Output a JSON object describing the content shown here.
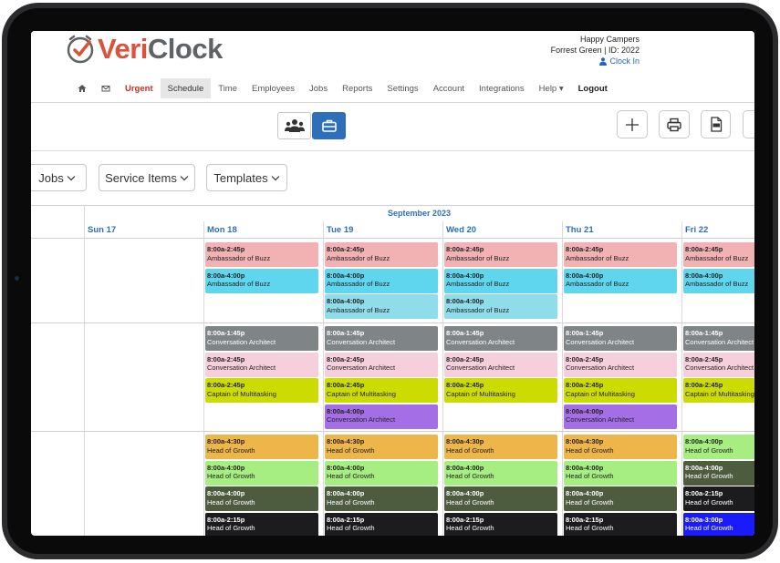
{
  "brand": {
    "veri": "Veri",
    "clock": "Clock",
    "accent": "#d9523a",
    "grey": "#5f6366"
  },
  "account": {
    "company": "Happy Campers",
    "location": "Forrest Green | ID: 2022",
    "clock_in": "Clock In"
  },
  "nav": {
    "home_icon": "home-icon",
    "mail_icon": "mail-icon",
    "items": [
      "Urgent",
      "Schedule",
      "Time",
      "Employees",
      "Jobs",
      "Reports",
      "Settings",
      "Account",
      "Integrations",
      "Help ▾",
      "Logout"
    ],
    "active": "Schedule"
  },
  "toolbar": {
    "view_people_icon": "people-icon",
    "view_jobs_icon": "briefcase-icon",
    "add_icon": "plus-icon",
    "print_icon": "printer-icon",
    "pdf_icon": "pdf-icon"
  },
  "filters": {
    "jobs": "Jobs",
    "service_items": "Service Items",
    "templates": "Templates"
  },
  "calendar": {
    "month": "September 2023",
    "days": [
      "Sun 17",
      "Mon 18",
      "Tue 19",
      "Wed 20",
      "Thu 21",
      "Fri 22"
    ],
    "groups": [
      {
        "columns": [
          [],
          [
            {
              "time": "8:00a-2:45p",
              "role": "Ambassador of Buzz",
              "color": "#f2b1b3",
              "text": "#222"
            },
            {
              "time": "8:00a-4:00p",
              "role": "Ambassador of Buzz",
              "color": "#5fd6ed",
              "text": "#222"
            }
          ],
          [
            {
              "time": "8:00a-2:45p",
              "role": "Ambassador of Buzz",
              "color": "#f2b1b3",
              "text": "#222"
            },
            {
              "time": "8:00a-4:00p",
              "role": "Ambassador of Buzz",
              "color": "#5fd6ed",
              "text": "#222"
            },
            {
              "time": "8:00a-4:00p",
              "role": "Ambassador of Buzz",
              "color": "#8fdcea",
              "text": "#222"
            }
          ],
          [
            {
              "time": "8:00a-2:45p",
              "role": "Ambassador of Buzz",
              "color": "#f2b1b3",
              "text": "#222"
            },
            {
              "time": "8:00a-4:00p",
              "role": "Ambassador of Buzz",
              "color": "#5fd6ed",
              "text": "#222"
            },
            {
              "time": "8:00a-4:00p",
              "role": "Ambassador of Buzz",
              "color": "#8fdcea",
              "text": "#222"
            }
          ],
          [
            {
              "time": "8:00a-2:45p",
              "role": "Ambassador of Buzz",
              "color": "#f2b1b3",
              "text": "#222"
            },
            {
              "time": "8:00a-4:00p",
              "role": "Ambassador of Buzz",
              "color": "#5fd6ed",
              "text": "#222"
            }
          ],
          [
            {
              "time": "8:00a-2:45p",
              "role": "Ambassador of Buzz",
              "color": "#f2b1b3",
              "text": "#222"
            },
            {
              "time": "8:00a-4:00p",
              "role": "Ambassador of Buzz",
              "color": "#5fd6ed",
              "text": "#222"
            }
          ]
        ]
      },
      {
        "columns": [
          [],
          [
            {
              "time": "8:00a-1:45p",
              "role": "Conversation Architect",
              "color": "#7f8487",
              "text": "#ffffff"
            },
            {
              "time": "8:00a-2:45p",
              "role": "Conversation Architect",
              "color": "#f6cfdc",
              "text": "#222"
            },
            {
              "time": "8:00a-2:45p",
              "role": "Captain of Multitasking",
              "color": "#cddc00",
              "text": "#222"
            }
          ],
          [
            {
              "time": "8:00a-1:45p",
              "role": "Conversation Architect",
              "color": "#7f8487",
              "text": "#ffffff"
            },
            {
              "time": "8:00a-2:45p",
              "role": "Conversation Architect",
              "color": "#f6cfdc",
              "text": "#222"
            },
            {
              "time": "8:00a-2:45p",
              "role": "Captain of Multitasking",
              "color": "#cddc00",
              "text": "#222"
            },
            {
              "time": "8:00a-4:00p",
              "role": "Conversation Architect",
              "color": "#a46ee6",
              "text": "#222"
            }
          ],
          [
            {
              "time": "8:00a-1:45p",
              "role": "Conversation Architect",
              "color": "#7f8487",
              "text": "#ffffff"
            },
            {
              "time": "8:00a-2:45p",
              "role": "Conversation Architect",
              "color": "#f6cfdc",
              "text": "#222"
            },
            {
              "time": "8:00a-2:45p",
              "role": "Captain of Multitasking",
              "color": "#cddc00",
              "text": "#222"
            }
          ],
          [
            {
              "time": "8:00a-1:45p",
              "role": "Conversation Architect",
              "color": "#7f8487",
              "text": "#ffffff"
            },
            {
              "time": "8:00a-2:45p",
              "role": "Conversation Architect",
              "color": "#f6cfdc",
              "text": "#222"
            },
            {
              "time": "8:00a-2:45p",
              "role": "Captain of Multitasking",
              "color": "#cddc00",
              "text": "#222"
            },
            {
              "time": "8:00a-4:00p",
              "role": "Conversation Architect",
              "color": "#a46ee6",
              "text": "#222"
            }
          ],
          [
            {
              "time": "8:00a-1:45p",
              "role": "Conversation Architect",
              "color": "#7f8487",
              "text": "#ffffff"
            },
            {
              "time": "8:00a-2:45p",
              "role": "Conversation Architect",
              "color": "#f6cfdc",
              "text": "#222"
            },
            {
              "time": "8:00a-2:45p",
              "role": "Captain of Multitasking",
              "color": "#cddc00",
              "text": "#222"
            }
          ]
        ]
      },
      {
        "columns": [
          [],
          [
            {
              "time": "8:00a-4:30p",
              "role": "Head of Growth",
              "color": "#edb54a",
              "text": "#222"
            },
            {
              "time": "8:00a-4:00p",
              "role": "Head of Growth",
              "color": "#a6ee82",
              "text": "#222"
            },
            {
              "time": "8:00a-4:00p",
              "role": "Head of Growth",
              "color": "#4d5c3f",
              "text": "#ffffff"
            },
            {
              "time": "8:00a-2:15p",
              "role": "Head of Growth",
              "color": "#1c1c1e",
              "text": "#ffffff"
            }
          ],
          [
            {
              "time": "8:00a-4:30p",
              "role": "Head of Growth",
              "color": "#edb54a",
              "text": "#222"
            },
            {
              "time": "8:00a-4:00p",
              "role": "Head of Growth",
              "color": "#a6ee82",
              "text": "#222"
            },
            {
              "time": "8:00a-4:00p",
              "role": "Head of Growth",
              "color": "#4d5c3f",
              "text": "#ffffff"
            },
            {
              "time": "8:00a-2:15p",
              "role": "Head of Growth",
              "color": "#1c1c1e",
              "text": "#ffffff"
            }
          ],
          [
            {
              "time": "8:00a-4:30p",
              "role": "Head of Growth",
              "color": "#edb54a",
              "text": "#222"
            },
            {
              "time": "8:00a-4:00p",
              "role": "Head of Growth",
              "color": "#a6ee82",
              "text": "#222"
            },
            {
              "time": "8:00a-4:00p",
              "role": "Head of Growth",
              "color": "#4d5c3f",
              "text": "#ffffff"
            },
            {
              "time": "8:00a-2:15p",
              "role": "Head of Growth",
              "color": "#1c1c1e",
              "text": "#ffffff"
            }
          ],
          [
            {
              "time": "8:00a-4:30p",
              "role": "Head of Growth",
              "color": "#edb54a",
              "text": "#222"
            },
            {
              "time": "8:00a-4:00p",
              "role": "Head of Growth",
              "color": "#a6ee82",
              "text": "#222"
            },
            {
              "time": "8:00a-4:00p",
              "role": "Head of Growth",
              "color": "#4d5c3f",
              "text": "#ffffff"
            },
            {
              "time": "8:00a-2:15p",
              "role": "Head of Growth",
              "color": "#1c1c1e",
              "text": "#ffffff"
            }
          ],
          [
            {
              "time": "8:00a-4:00p",
              "role": "Head of Growth",
              "color": "#a6ee82",
              "text": "#222"
            },
            {
              "time": "8:00a-4:00p",
              "role": "Head of Growth",
              "color": "#4d5c3f",
              "text": "#ffffff"
            },
            {
              "time": "8:00a-2:15p",
              "role": "Head of Growth",
              "color": "#1c1c1e",
              "text": "#ffffff"
            },
            {
              "time": "8:00a-3:00p",
              "role": "Head of Growth",
              "color": "#1a1aff",
              "text": "#ffffff"
            }
          ]
        ]
      }
    ]
  }
}
